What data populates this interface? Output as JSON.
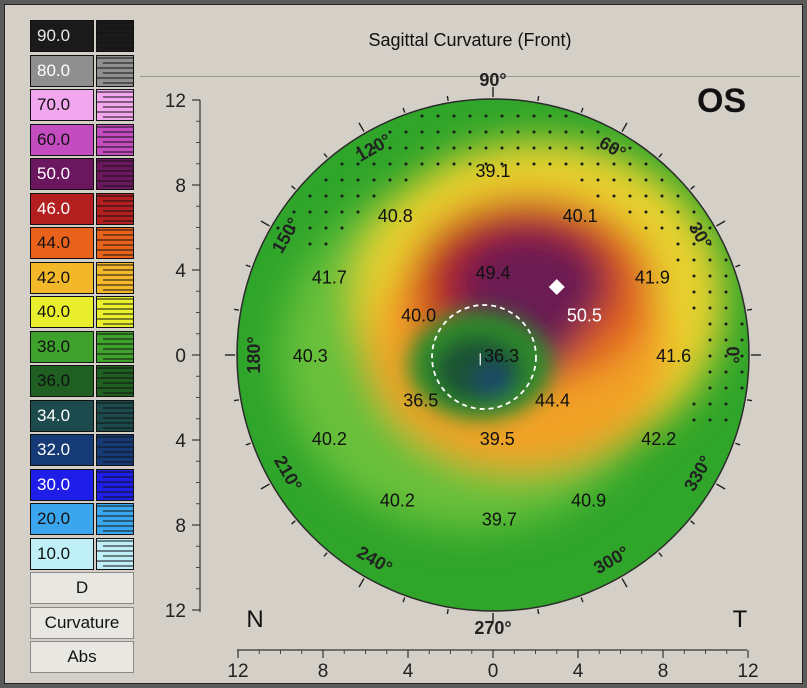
{
  "title": "Sagittal Curvature (Front)",
  "eye": "OS",
  "scale": {
    "steps": [
      {
        "value": "90.0",
        "color": "#1a1a1a",
        "text": "#e8e8e8"
      },
      {
        "value": "80.0",
        "color": "#8f8f8f",
        "text": "#ffffff"
      },
      {
        "value": "70.0",
        "color": "#f2a6ee",
        "text": "#111111"
      },
      {
        "value": "60.0",
        "color": "#c44cc1",
        "text": "#111111"
      },
      {
        "value": "50.0",
        "color": "#6a1760",
        "text": "#ffffff"
      },
      {
        "value": "46.0",
        "color": "#b31f1f",
        "text": "#ffffff"
      },
      {
        "value": "44.0",
        "color": "#e8621c",
        "text": "#111111"
      },
      {
        "value": "42.0",
        "color": "#f2b82a",
        "text": "#111111"
      },
      {
        "value": "40.0",
        "color": "#e9ef2d",
        "text": "#111111"
      },
      {
        "value": "38.0",
        "color": "#3fa22c",
        "text": "#111111"
      },
      {
        "value": "36.0",
        "color": "#1f5f21",
        "text": "#111111"
      },
      {
        "value": "34.0",
        "color": "#1d4a4c",
        "text": "#ffffff"
      },
      {
        "value": "32.0",
        "color": "#163a75",
        "text": "#ffffff"
      },
      {
        "value": "30.0",
        "color": "#1e1ee8",
        "text": "#ffffff"
      },
      {
        "value": "20.0",
        "color": "#3aa6ee",
        "text": "#111111"
      },
      {
        "value": "10.0",
        "color": "#bff0f8",
        "text": "#111111"
      }
    ],
    "unit": "D",
    "type": "Curvature",
    "mode": "Abs"
  },
  "chart_data": {
    "type": "heatmap",
    "title": "Sagittal Curvature (Front)",
    "eye": "OS",
    "x_axis": {
      "ticks": [
        "12",
        "8",
        "4",
        "0",
        "4",
        "8",
        "12"
      ],
      "range": [
        -12,
        12
      ]
    },
    "y_axis": {
      "ticks": [
        "12",
        "8",
        "4",
        "0",
        "4",
        "8",
        "12"
      ],
      "range": [
        -12,
        12
      ]
    },
    "angles": [
      "90°",
      "60°",
      "30°",
      "0°",
      "330°",
      "300°",
      "270°",
      "240°",
      "210°",
      "180°",
      "150°",
      "120°"
    ],
    "orientation": {
      "left": "N",
      "right": "T"
    },
    "readings": [
      {
        "x": 0,
        "y": 8.7,
        "value": "39.1"
      },
      {
        "x": -4.6,
        "y": 6.6,
        "value": "40.8"
      },
      {
        "x": 4.1,
        "y": 6.6,
        "value": "40.1"
      },
      {
        "x": -7.7,
        "y": 3.7,
        "value": "41.7"
      },
      {
        "x": 0,
        "y": 3.9,
        "value": "49.4"
      },
      {
        "x": 7.5,
        "y": 3.7,
        "value": "41.9"
      },
      {
        "x": 4.3,
        "y": 1.9,
        "value": "50.5",
        "color": "#ffffff"
      },
      {
        "x": -3.5,
        "y": 1.9,
        "value": "40.0"
      },
      {
        "x": -8.6,
        "y": 0,
        "value": "40.3"
      },
      {
        "x": 0.4,
        "y": 0,
        "value": "36.3"
      },
      {
        "x": 8.5,
        "y": 0,
        "value": "41.6"
      },
      {
        "x": -3.4,
        "y": -2.1,
        "value": "36.5"
      },
      {
        "x": 2.8,
        "y": -2.1,
        "value": "44.4"
      },
      {
        "x": -7.7,
        "y": -3.9,
        "value": "40.2"
      },
      {
        "x": 0.2,
        "y": -3.9,
        "value": "39.5"
      },
      {
        "x": 7.8,
        "y": -3.9,
        "value": "42.2"
      },
      {
        "x": -4.5,
        "y": -6.8,
        "value": "40.2"
      },
      {
        "x": 4.5,
        "y": -6.8,
        "value": "40.9"
      },
      {
        "x": 0.3,
        "y": -7.7,
        "value": "39.7"
      }
    ],
    "steep_point": {
      "x": 3,
      "y": 3.2,
      "value": "50.5"
    },
    "pupil": {
      "x": -0.6,
      "y": -0.2,
      "radius": 2.6
    }
  }
}
